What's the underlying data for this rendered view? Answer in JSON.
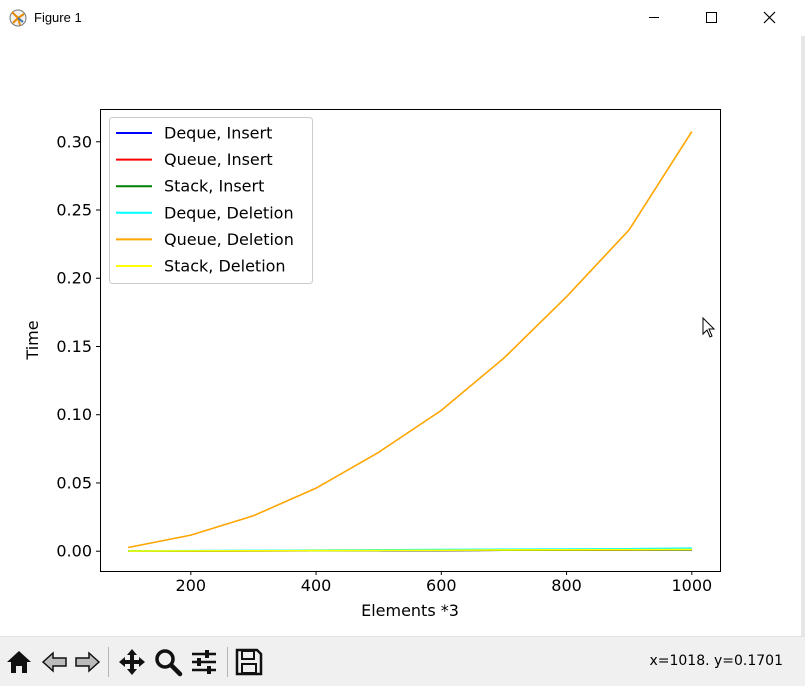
{
  "window": {
    "title": "Figure 1"
  },
  "chart_data": {
    "type": "line",
    "xlabel": "Elements *3",
    "ylabel": "Time",
    "xlim": [
      55,
      1045
    ],
    "ylim": [
      -0.0145,
      0.324
    ],
    "xticks": [
      200,
      400,
      600,
      800,
      1000
    ],
    "xtick_labels": [
      "200",
      "400",
      "600",
      "800",
      "1000"
    ],
    "yticks": [
      0.0,
      0.05,
      0.1,
      0.15,
      0.2,
      0.25,
      0.3
    ],
    "ytick_labels": [
      "0.00",
      "0.05",
      "0.10",
      "0.15",
      "0.20",
      "0.25",
      "0.30"
    ],
    "legend": "upper-left",
    "grid": false,
    "x": [
      100,
      200,
      300,
      400,
      500,
      600,
      700,
      800,
      900,
      1000
    ],
    "series": [
      {
        "name": "Deque, Insert",
        "color": "#0000ff",
        "values": [
          0.0001,
          0.0002,
          0.0003,
          0.0004,
          0.0005,
          0.0006,
          0.0007,
          0.0008,
          0.0009,
          0.001
        ]
      },
      {
        "name": "Queue, Insert",
        "color": "#ff0000",
        "values": [
          0.0001,
          0.0002,
          0.0003,
          0.0004,
          0.0005,
          0.0006,
          0.0007,
          0.0008,
          0.0009,
          0.001
        ]
      },
      {
        "name": "Stack, Insert",
        "color": "#008000",
        "values": [
          0.0001,
          0.0002,
          0.0003,
          0.0004,
          0.0005,
          0.0006,
          0.0007,
          0.0008,
          0.0009,
          0.001
        ]
      },
      {
        "name": "Deque, Deletion",
        "color": "#00ffff",
        "values": [
          0.0002,
          0.0004,
          0.0006,
          0.0008,
          0.001,
          0.0012,
          0.0014,
          0.0016,
          0.0018,
          0.0022
        ]
      },
      {
        "name": "Queue, Deletion",
        "color": "#ffa500",
        "values": [
          0.0027,
          0.0118,
          0.026,
          0.0462,
          0.0725,
          0.1032,
          0.1415,
          0.1865,
          0.2355,
          0.3075
        ]
      },
      {
        "name": "Stack, Deletion",
        "color": "#ffff00",
        "values": [
          0.0001,
          0.0002,
          0.0003,
          0.0005,
          0.0006,
          0.0007,
          0.0009,
          0.001,
          0.0011,
          0.0013
        ]
      }
    ]
  },
  "status": {
    "coords": "x=1018. y=0.1701"
  },
  "toolbar": {
    "buttons": [
      "home-icon",
      "back-icon",
      "forward-icon",
      "pan-icon",
      "zoom-icon",
      "configure-subplots-icon",
      "save-icon"
    ]
  }
}
